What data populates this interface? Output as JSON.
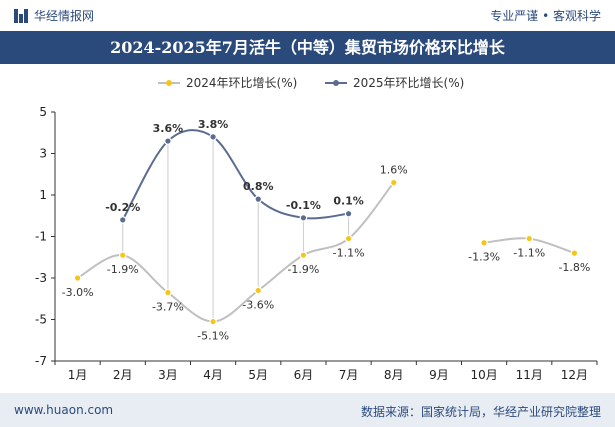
{
  "header": {
    "brand": "华经情报网",
    "slogan": "专业严谨 • 客观科学"
  },
  "title": "2024-2025年7月活牛（中等）集贸市场价格环比增长",
  "footer": {
    "site": "www.huaon.com",
    "source": "数据来源：国家统计局，华经产业研究院整理"
  },
  "colors": {
    "title_bg": "#2b4a7c",
    "series_2024": "#f5c518",
    "series_2024_line": "#c0c0c0",
    "series_2025": "#5a6c8f"
  },
  "chart_data": {
    "type": "line",
    "categories": [
      "1月",
      "2月",
      "3月",
      "4月",
      "5月",
      "6月",
      "7月",
      "8月",
      "9月",
      "10月",
      "11月",
      "12月"
    ],
    "ylim": [
      -7,
      5
    ],
    "yticks": [
      -7,
      -5,
      -3,
      -1,
      1,
      3,
      5
    ],
    "legend_position": "top",
    "series": [
      {
        "name": "2024年环比增长(%)",
        "values": [
          -3.0,
          -1.9,
          -3.7,
          -5.1,
          -3.6,
          -1.9,
          -1.1,
          1.6,
          null,
          -1.3,
          -1.1,
          -1.8
        ],
        "labels": [
          "-3.0%",
          "-1.9%",
          "-3.7%",
          "-5.1%",
          "-3.6%",
          "-1.9%",
          "-1.1%",
          "1.6%",
          "",
          "-1.3%",
          "-1.1%",
          "-1.8%"
        ]
      },
      {
        "name": "2025年环比增长(%)",
        "values": [
          null,
          -0.2,
          3.6,
          3.8,
          0.8,
          -0.1,
          0.1,
          null,
          null,
          null,
          null,
          null
        ],
        "labels": [
          "",
          "-0.2%",
          "3.6%",
          "3.8%",
          "0.8%",
          "-0.1%",
          "0.1%",
          "",
          "",
          "",
          "",
          ""
        ]
      }
    ]
  }
}
